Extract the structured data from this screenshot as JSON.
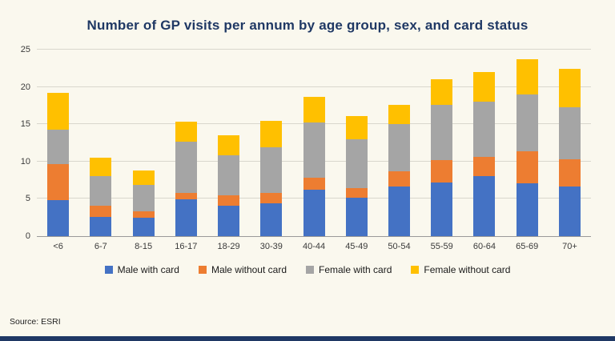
{
  "page": {
    "source_note": "Source: ESRI",
    "background_color": "#FAF8EE",
    "accent_color": "#1F3864",
    "title_color": "#1F3864"
  },
  "chart_data": {
    "type": "bar",
    "stacked": true,
    "title": "Number of GP visits per annum by age group, sex, and card status",
    "categories": [
      "<6",
      "6-7",
      "8-15",
      "16-17",
      "18-29",
      "30-39",
      "40-44",
      "45-49",
      "50-54",
      "55-59",
      "60-64",
      "65-69",
      "70+"
    ],
    "series": [
      {
        "name": "Male with card",
        "color": "#4472C4",
        "values": [
          4.8,
          2.6,
          2.5,
          4.9,
          4.1,
          4.4,
          6.2,
          5.1,
          6.7,
          7.2,
          8.1,
          7.1,
          6.7
        ]
      },
      {
        "name": "Male without card",
        "color": "#ED7D31",
        "values": [
          4.9,
          1.5,
          0.8,
          0.9,
          1.4,
          1.4,
          1.6,
          1.3,
          2.0,
          3.0,
          2.5,
          4.3,
          3.6
        ]
      },
      {
        "name": "Female with card",
        "color": "#A5A5A5",
        "values": [
          4.6,
          3.9,
          3.6,
          6.9,
          5.3,
          6.1,
          7.4,
          6.6,
          6.3,
          7.4,
          7.4,
          7.6,
          7.0
        ]
      },
      {
        "name": "Female without card",
        "color": "#FFC000",
        "values": [
          4.9,
          2.5,
          1.9,
          2.6,
          2.7,
          3.6,
          3.5,
          3.1,
          2.6,
          3.4,
          4.0,
          4.7,
          5.1
        ]
      }
    ],
    "xlabel": "",
    "ylabel": "",
    "ylim": [
      0,
      25
    ],
    "yticks": [
      0,
      5,
      10,
      15,
      20,
      25
    ],
    "grid": true,
    "legend_position": "bottom"
  }
}
